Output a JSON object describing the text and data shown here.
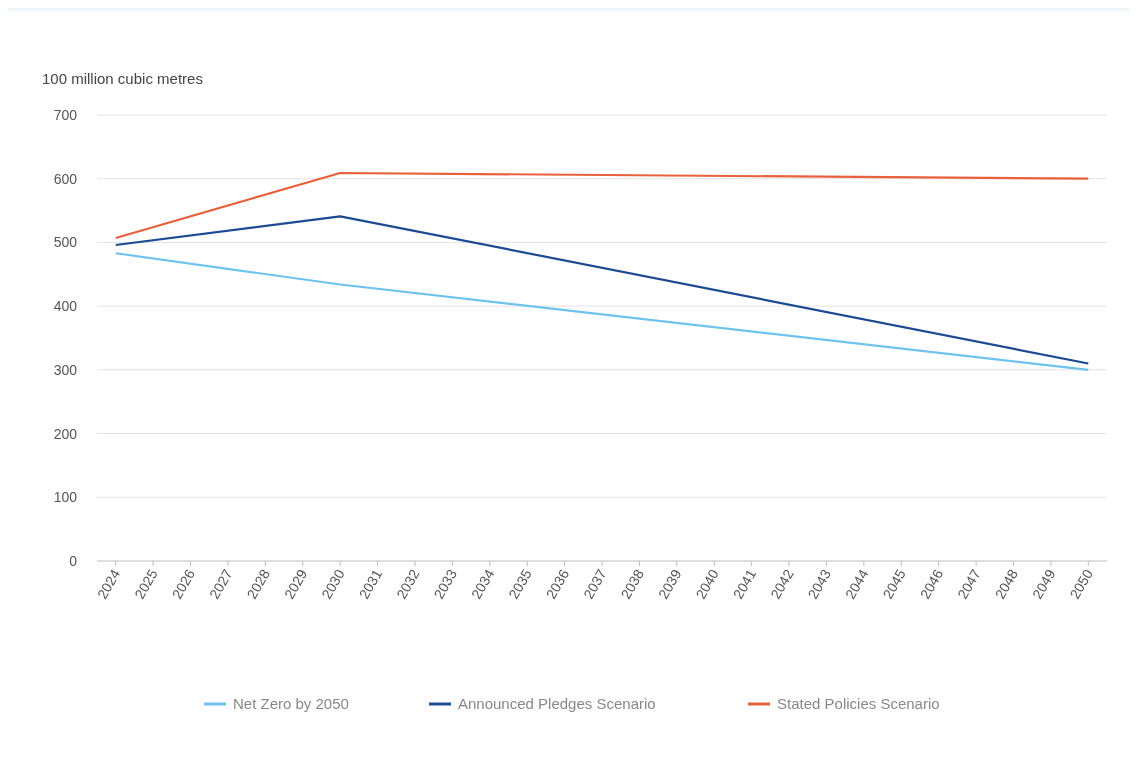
{
  "chart_data": {
    "type": "line",
    "ylabel": "100 million cubic metres",
    "xlim": [
      2023.5,
      2050.5
    ],
    "xticks": [
      2024,
      2025,
      2026,
      2027,
      2028,
      2029,
      2030,
      2031,
      2032,
      2033,
      2034,
      2035,
      2036,
      2037,
      2038,
      2039,
      2040,
      2041,
      2042,
      2043,
      2044,
      2045,
      2046,
      2047,
      2048,
      2049,
      2050
    ],
    "ylim": [
      0,
      700
    ],
    "yticks": [
      0,
      100,
      200,
      300,
      400,
      500,
      600,
      700
    ],
    "grid": "y",
    "legend": "bottom",
    "line_style": "solid",
    "series": [
      {
        "name": "Net Zero by 2050",
        "color": "#6ec3ec",
        "x": [
          2024,
          2030,
          2050
        ],
        "values": [
          483,
          434,
          300
        ]
      },
      {
        "name": "Announced Pledges Scenario",
        "color": "#1b4a93",
        "x": [
          2024,
          2030,
          2050
        ],
        "values": [
          496,
          541,
          310
        ]
      },
      {
        "name": "Stated Policies Scenario",
        "color": "#e8603c",
        "x": [
          2024,
          2030,
          2050
        ],
        "values": [
          507,
          609,
          600
        ]
      }
    ]
  }
}
